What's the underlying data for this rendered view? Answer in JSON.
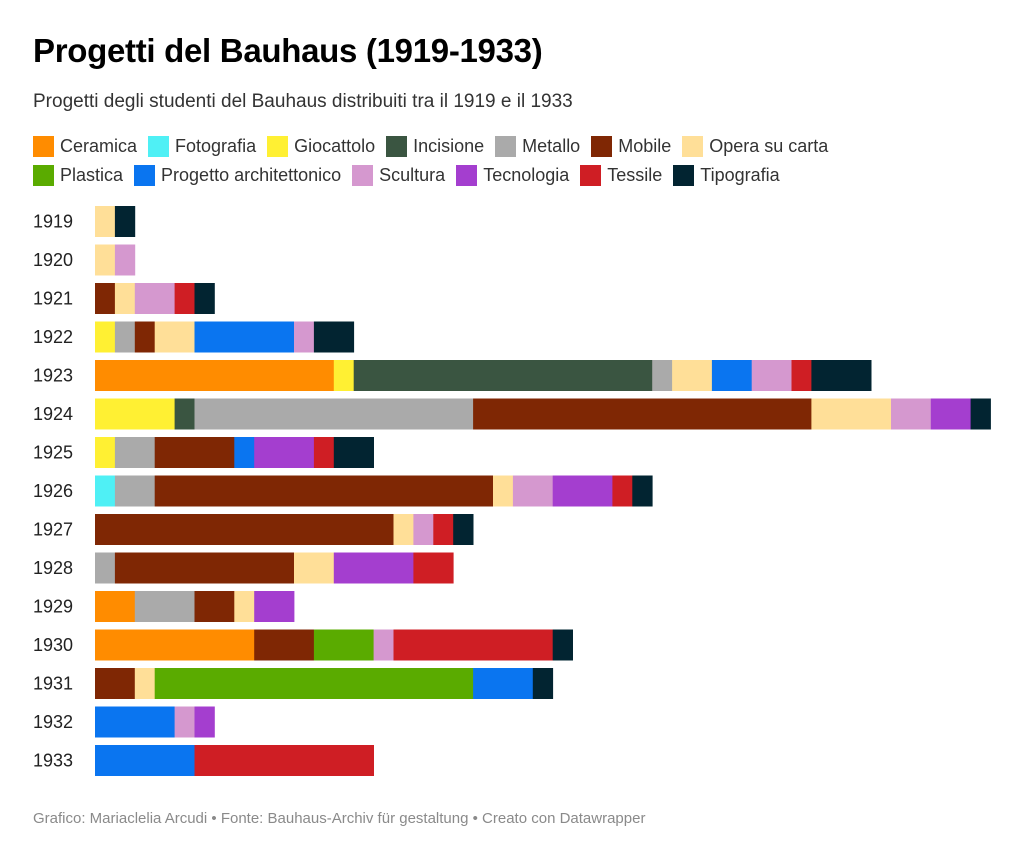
{
  "title": "Progetti del Bauhaus (1919-1933)",
  "subtitle": "Progetti degli studenti del Bauhaus distribuiti tra il 1919 e il 1933",
  "footer": "Grafico: Mariaclelia Arcudi • Fonte: Bauhaus-Archiv für gestaltung • Creato con Datawrapper",
  "chart_data": {
    "type": "bar",
    "orientation": "horizontal",
    "stacked": true,
    "title": "Progetti del Bauhaus (1919-1933)",
    "subtitle": "Progetti degli studenti del Bauhaus distribuiti tra il 1919 e il 1933",
    "xlabel": "",
    "ylabel": "",
    "grid": false,
    "legend_position": "top",
    "categories": [
      "1919",
      "1920",
      "1921",
      "1922",
      "1923",
      "1924",
      "1925",
      "1926",
      "1927",
      "1928",
      "1929",
      "1930",
      "1931",
      "1932",
      "1933"
    ],
    "series": [
      {
        "name": "Ceramica",
        "color": "#ff8c00",
        "values": [
          0,
          0,
          0,
          0,
          12,
          0,
          0,
          0,
          0,
          0,
          2,
          8,
          0,
          0,
          0
        ]
      },
      {
        "name": "Fotografia",
        "color": "#4ff0f5",
        "values": [
          0,
          0,
          0,
          0,
          0,
          0,
          0,
          1,
          0,
          0,
          0,
          0,
          0,
          0,
          0
        ]
      },
      {
        "name": "Giocattolo",
        "color": "#fff033",
        "values": [
          0,
          0,
          0,
          1,
          1,
          4,
          1,
          0,
          0,
          0,
          0,
          0,
          0,
          0,
          0
        ]
      },
      {
        "name": "Incisione",
        "color": "#3a5541",
        "values": [
          0,
          0,
          0,
          0,
          15,
          1,
          0,
          0,
          0,
          0,
          0,
          0,
          0,
          0,
          0
        ]
      },
      {
        "name": "Metallo",
        "color": "#aaaaaa",
        "values": [
          0,
          0,
          0,
          1,
          1,
          14,
          2,
          2,
          0,
          1,
          3,
          0,
          0,
          0,
          0
        ]
      },
      {
        "name": "Mobile",
        "color": "#7f2704",
        "values": [
          0,
          0,
          1,
          1,
          0,
          17,
          4,
          17,
          15,
          9,
          2,
          3,
          2,
          0,
          0
        ]
      },
      {
        "name": "Opera su carta",
        "color": "#ffdf98",
        "values": [
          1,
          1,
          1,
          2,
          2,
          4,
          0,
          1,
          1,
          2,
          1,
          0,
          1,
          0,
          0
        ]
      },
      {
        "name": "Plastica",
        "color": "#5aab00",
        "values": [
          0,
          0,
          0,
          0,
          0,
          0,
          0,
          0,
          0,
          0,
          0,
          3,
          16,
          0,
          0
        ]
      },
      {
        "name": "Progetto architettonico",
        "color": "#0a75f0",
        "values": [
          0,
          0,
          0,
          5,
          2,
          0,
          1,
          0,
          0,
          0,
          0,
          0,
          3,
          4,
          5
        ]
      },
      {
        "name": "Scultura",
        "color": "#d598cf",
        "values": [
          0,
          1,
          2,
          1,
          2,
          2,
          0,
          2,
          1,
          0,
          0,
          1,
          0,
          1,
          0
        ]
      },
      {
        "name": "Tecnologia",
        "color": "#a43ecf",
        "values": [
          0,
          0,
          0,
          0,
          0,
          2,
          3,
          3,
          0,
          4,
          2,
          0,
          0,
          1,
          0
        ]
      },
      {
        "name": "Tessile",
        "color": "#cf1e24",
        "values": [
          0,
          0,
          1,
          0,
          1,
          0,
          1,
          1,
          1,
          2,
          0,
          8,
          0,
          0,
          9
        ]
      },
      {
        "name": "Tipografia",
        "color": "#022431",
        "values": [
          1,
          0,
          1,
          2,
          3,
          1,
          2,
          1,
          1,
          0,
          0,
          1,
          1,
          0,
          0
        ]
      }
    ]
  }
}
